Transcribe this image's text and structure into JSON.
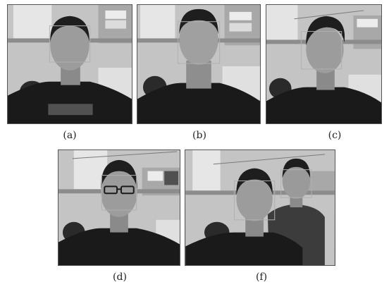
{
  "figure": {
    "panels": [
      {
        "id": "a",
        "caption": "(a)"
      },
      {
        "id": "b",
        "caption": "(b)"
      },
      {
        "id": "c",
        "caption": "(c)"
      },
      {
        "id": "d",
        "caption": "(d)"
      },
      {
        "id": "f",
        "caption": "(f)"
      }
    ]
  },
  "colors": {
    "wall": "#c8c8c8",
    "window": "#e8e8e8",
    "shirt": "#1c1c1c",
    "skin": "#9a9a9a",
    "hair": "#202020",
    "detection_box": "#b8b8b8"
  }
}
